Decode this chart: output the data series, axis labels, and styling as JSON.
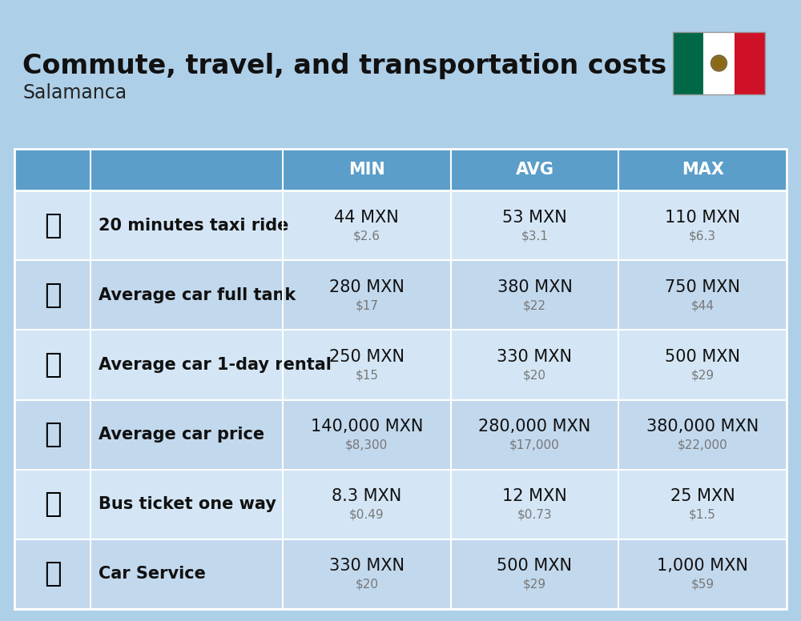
{
  "title": "Commute, travel, and transportation costs",
  "subtitle": "Salamanca",
  "bg_color": "#aecfe8",
  "header_bg_color": "#5b9ec9",
  "header_text_color": "#ffffff",
  "row_colors": [
    "#d4e6f5",
    "#c2d8ed"
  ],
  "divider_color": "#ffffff",
  "columns": [
    "MIN",
    "AVG",
    "MAX"
  ],
  "rows": [
    {
      "label": "20 minutes taxi ride",
      "min_mxn": "44 MXN",
      "min_usd": "$2.6",
      "avg_mxn": "53 MXN",
      "avg_usd": "$3.1",
      "max_mxn": "110 MXN",
      "max_usd": "$6.3"
    },
    {
      "label": "Average car full tank",
      "min_mxn": "280 MXN",
      "min_usd": "$17",
      "avg_mxn": "380 MXN",
      "avg_usd": "$22",
      "max_mxn": "750 MXN",
      "max_usd": "$44"
    },
    {
      "label": "Average car 1-day rental",
      "min_mxn": "250 MXN",
      "min_usd": "$15",
      "avg_mxn": "330 MXN",
      "avg_usd": "$20",
      "max_mxn": "500 MXN",
      "max_usd": "$29"
    },
    {
      "label": "Average car price",
      "min_mxn": "140,000 MXN",
      "min_usd": "$8,300",
      "avg_mxn": "280,000 MXN",
      "avg_usd": "$17,000",
      "max_mxn": "380,000 MXN",
      "max_usd": "$22,000"
    },
    {
      "label": "Bus ticket one way",
      "min_mxn": "8.3 MXN",
      "min_usd": "$0.49",
      "avg_mxn": "12 MXN",
      "avg_usd": "$0.73",
      "max_mxn": "25 MXN",
      "max_usd": "$1.5"
    },
    {
      "label": "Car Service",
      "min_mxn": "330 MXN",
      "min_usd": "$20",
      "avg_mxn": "500 MXN",
      "avg_usd": "$29",
      "max_mxn": "1,000 MXN",
      "max_usd": "$59"
    }
  ],
  "title_fontsize": 24,
  "subtitle_fontsize": 17,
  "header_fontsize": 15,
  "label_fontsize": 15,
  "cell_main_fontsize": 15,
  "cell_sub_fontsize": 11,
  "icon_fontsize": 26
}
